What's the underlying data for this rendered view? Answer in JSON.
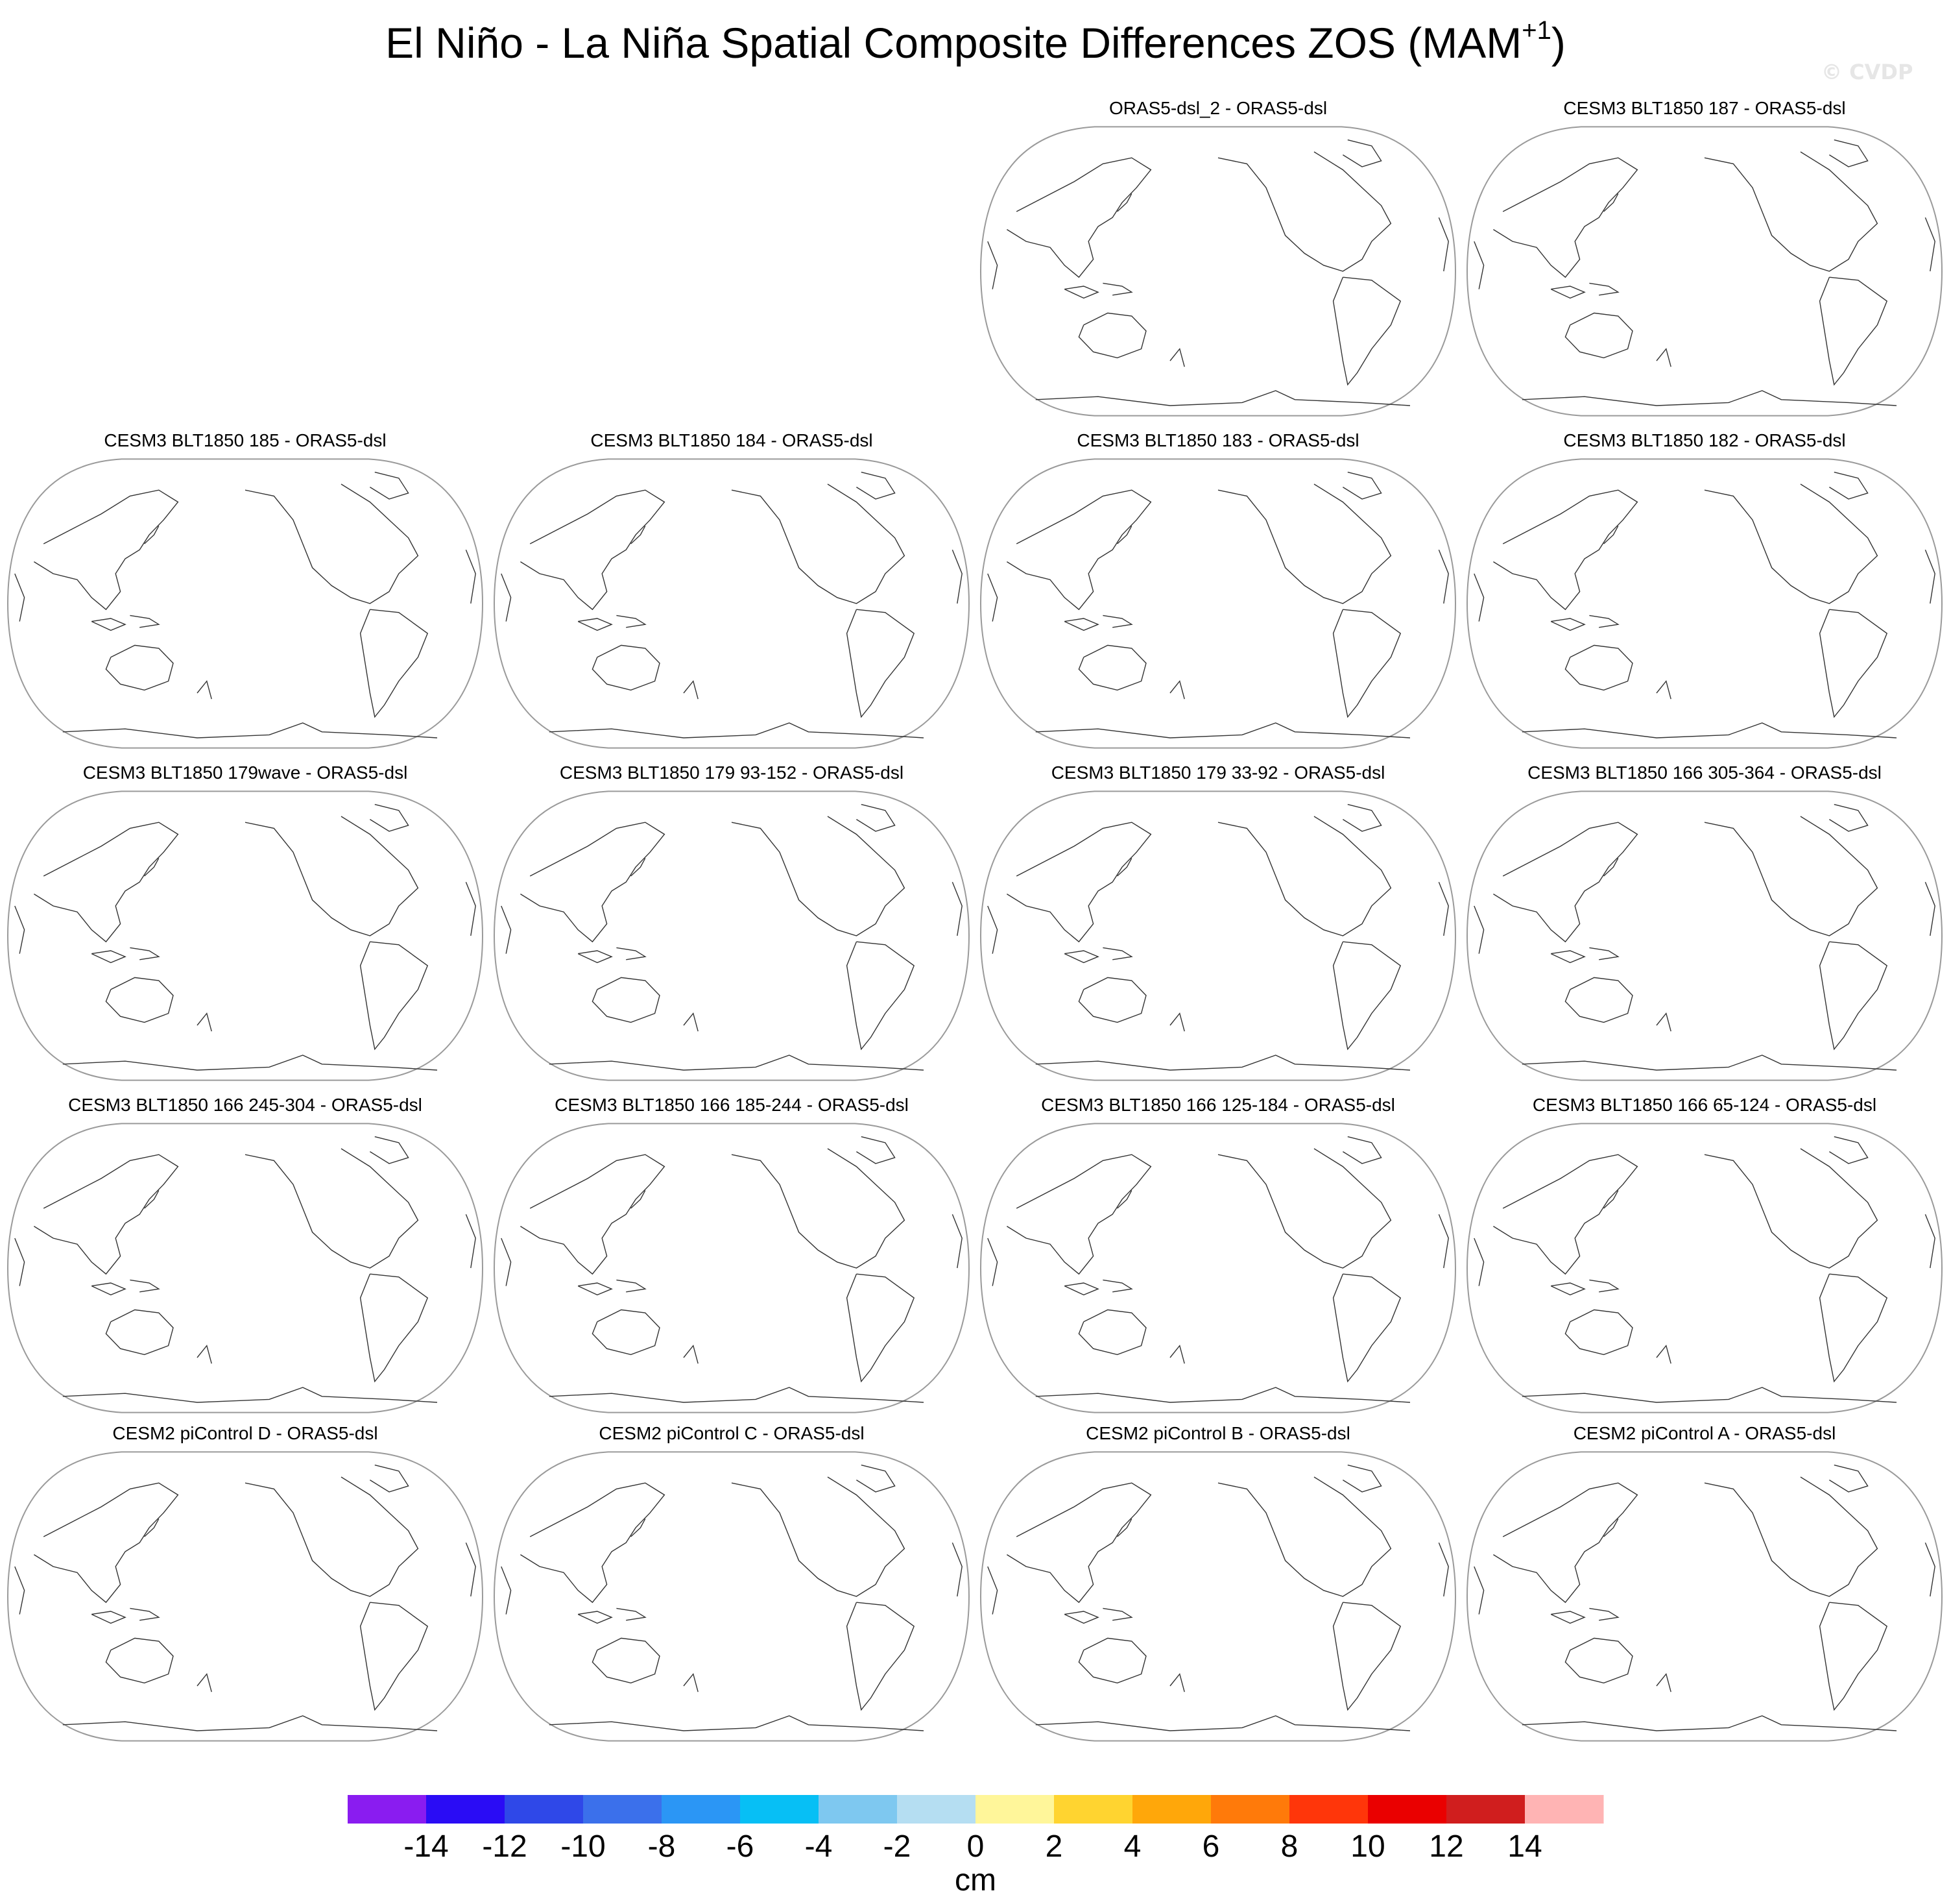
{
  "title": {
    "main": "El Niño - La Niña Spatial Composite Differences ZOS (MAM",
    "superscript": "+1",
    "close": ")"
  },
  "watermark": "© CVDP",
  "chart_data": {
    "type": "heatmap",
    "projection": "Robinson (Pacific-centered)",
    "variable": "ZOS",
    "season": "MAM+1",
    "panels": [
      {
        "title": "ORAS5-dsl_2 - ORAS5-dsl",
        "row": 0,
        "col": 2
      },
      {
        "title": "CESM3 BLT1850 187 - ORAS5-dsl",
        "row": 0,
        "col": 3
      },
      {
        "title": "CESM3 BLT1850 185 - ORAS5-dsl",
        "row": 1,
        "col": 0
      },
      {
        "title": "CESM3 BLT1850 184 - ORAS5-dsl",
        "row": 1,
        "col": 1
      },
      {
        "title": "CESM3 BLT1850 183 - ORAS5-dsl",
        "row": 1,
        "col": 2
      },
      {
        "title": "CESM3 BLT1850 182 - ORAS5-dsl",
        "row": 1,
        "col": 3
      },
      {
        "title": "CESM3 BLT1850 179wave - ORAS5-dsl",
        "row": 2,
        "col": 0
      },
      {
        "title": "CESM3 BLT1850 179 93-152 - ORAS5-dsl",
        "row": 2,
        "col": 1
      },
      {
        "title": "CESM3 BLT1850 179 33-92 - ORAS5-dsl",
        "row": 2,
        "col": 2
      },
      {
        "title": "CESM3 BLT1850 166 305-364 - ORAS5-dsl",
        "row": 2,
        "col": 3
      },
      {
        "title": "CESM3 BLT1850 166 245-304 - ORAS5-dsl",
        "row": 3,
        "col": 0
      },
      {
        "title": "CESM3 BLT1850 166 185-244 - ORAS5-dsl",
        "row": 3,
        "col": 1
      },
      {
        "title": "CESM3 BLT1850 166 125-184 - ORAS5-dsl",
        "row": 3,
        "col": 2
      },
      {
        "title": "CESM3 BLT1850 166 65-124 - ORAS5-dsl",
        "row": 3,
        "col": 3
      },
      {
        "title": "CESM2 piControl D - ORAS5-dsl",
        "row": 4,
        "col": 0
      },
      {
        "title": "CESM2 piControl C - ORAS5-dsl",
        "row": 4,
        "col": 1
      },
      {
        "title": "CESM2 piControl B - ORAS5-dsl",
        "row": 4,
        "col": 2
      },
      {
        "title": "CESM2 piControl A - ORAS5-dsl",
        "row": 4,
        "col": 3
      }
    ],
    "colorbar": {
      "units": "cm",
      "ticks": [
        "-14",
        "-12",
        "-10",
        "-8",
        "-6",
        "-4",
        "-2",
        "0",
        "2",
        "4",
        "6",
        "8",
        "10",
        "12",
        "14"
      ],
      "colors": [
        "#8a1cf0",
        "#2a0cf5",
        "#2f48e8",
        "#3b70eb",
        "#2b96f5",
        "#07bff5",
        "#7ec8f0",
        "#b5def2",
        "#fff69a",
        "#ffd430",
        "#ffa70a",
        "#ff7a0a",
        "#ff360a",
        "#ea0000",
        "#d01e1e",
        "#ffb4b4"
      ]
    }
  }
}
